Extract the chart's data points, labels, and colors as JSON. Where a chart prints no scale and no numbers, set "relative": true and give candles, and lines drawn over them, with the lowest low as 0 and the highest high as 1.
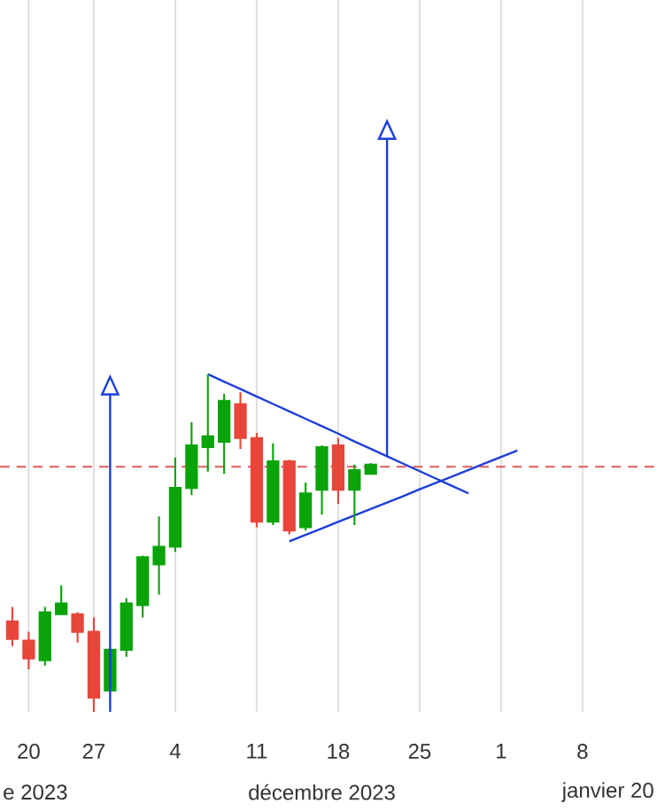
{
  "chart_data": {
    "type": "candlestick",
    "relative": true,
    "grid": true,
    "categories": [
      null,
      "20",
      null,
      null,
      null,
      "27",
      null,
      null,
      null,
      null,
      "4",
      null,
      null,
      null,
      null,
      "11",
      null,
      null,
      null,
      null,
      "18",
      null,
      null,
      null,
      null,
      "25",
      null,
      null,
      null,
      null,
      "1",
      null,
      null,
      null,
      null,
      "8",
      null,
      null,
      null,
      null
    ],
    "ohlc": [
      [
        0.268,
        0.311,
        0.195,
        0.216
      ],
      [
        0.211,
        0.237,
        0.126,
        0.158
      ],
      [
        0.153,
        0.311,
        0.137,
        0.295
      ],
      [
        0.289,
        0.374,
        0.289,
        0.321
      ],
      [
        0.289,
        0.295,
        0.205,
        0.237
      ],
      [
        0.237,
        0.279,
        0.0,
        0.042
      ],
      [
        0.063,
        0.184,
        0.063,
        0.184
      ],
      [
        0.184,
        0.337,
        0.163,
        0.321
      ],
      [
        0.316,
        0.463,
        0.279,
        0.458
      ],
      [
        0.437,
        0.579,
        0.347,
        0.489
      ],
      [
        0.489,
        0.753,
        0.474,
        0.663
      ],
      [
        0.663,
        0.858,
        0.642,
        0.789
      ],
      [
        0.784,
        1.0,
        0.711,
        0.816
      ],
      [
        0.8,
        0.942,
        0.705,
        0.921
      ],
      [
        0.911,
        0.947,
        0.779,
        0.811
      ],
      [
        0.811,
        0.826,
        0.547,
        0.563
      ],
      [
        0.563,
        0.795,
        0.553,
        0.742
      ],
      [
        0.742,
        0.747,
        0.526,
        0.537
      ],
      [
        0.547,
        0.679,
        0.537,
        0.647
      ],
      [
        0.658,
        0.789,
        0.584,
        0.784
      ],
      [
        0.789,
        0.811,
        0.616,
        0.658
      ],
      [
        0.658,
        0.732,
        0.553,
        0.716
      ],
      [
        0.705,
        0.737,
        0.705,
        0.732
      ],
      null,
      null,
      null,
      null,
      null,
      null,
      null,
      null,
      null,
      null,
      null,
      null,
      null,
      null,
      null,
      null,
      null
    ],
    "colors": [
      "#e8463a",
      "#e8463a",
      "#0aa30a",
      "#0aa30a",
      "#e8463a",
      "#e8463a",
      "#0aa30a",
      "#0aa30a",
      "#0aa30a",
      "#0aa30a",
      "#0aa30a",
      "#0aa30a",
      "#0aa30a",
      "#0aa30a",
      "#e8463a",
      "#e8463a",
      "#0aa30a",
      "#e8463a",
      "#0aa30a",
      "#0aa30a",
      "#e8463a",
      "#0aa30a",
      "#0aa30a",
      null,
      null,
      null,
      null,
      null,
      null,
      null,
      null,
      null,
      null,
      null,
      null,
      null,
      null,
      null,
      null,
      null
    ],
    "series": [
      {
        "type": "line",
        "color": "#1b3fd8",
        "values": [
          null,
          null,
          null,
          null,
          null,
          null,
          null,
          null,
          null,
          null,
          null,
          null,
          1.0,
          0.978,
          0.956,
          0.934,
          0.912,
          0.89,
          0.868,
          0.846,
          0.824,
          0.801,
          0.779,
          0.757,
          0.735,
          0.713,
          0.691,
          0.669,
          0.647,
          null,
          null,
          null,
          null,
          null,
          null,
          null,
          null,
          null,
          null,
          null
        ]
      },
      {
        "type": "line",
        "color": "#1b3fd8",
        "values": [
          null,
          null,
          null,
          null,
          null,
          null,
          null,
          null,
          null,
          null,
          null,
          null,
          null,
          null,
          null,
          null,
          null,
          0.505,
          0.524,
          0.543,
          0.563,
          0.582,
          0.601,
          0.62,
          0.639,
          0.659,
          0.678,
          0.697,
          0.716,
          0.736,
          0.755,
          0.774,
          null,
          null,
          null,
          null,
          null,
          null,
          null,
          null
        ]
      }
    ],
    "ref_lines": [
      {
        "axis": "y",
        "value": 0.726,
        "color": "#e06c6c",
        "line_style": "dashed"
      }
    ],
    "annotations": [
      "e 2023",
      "décembre 2023",
      "janvier 20"
    ]
  }
}
